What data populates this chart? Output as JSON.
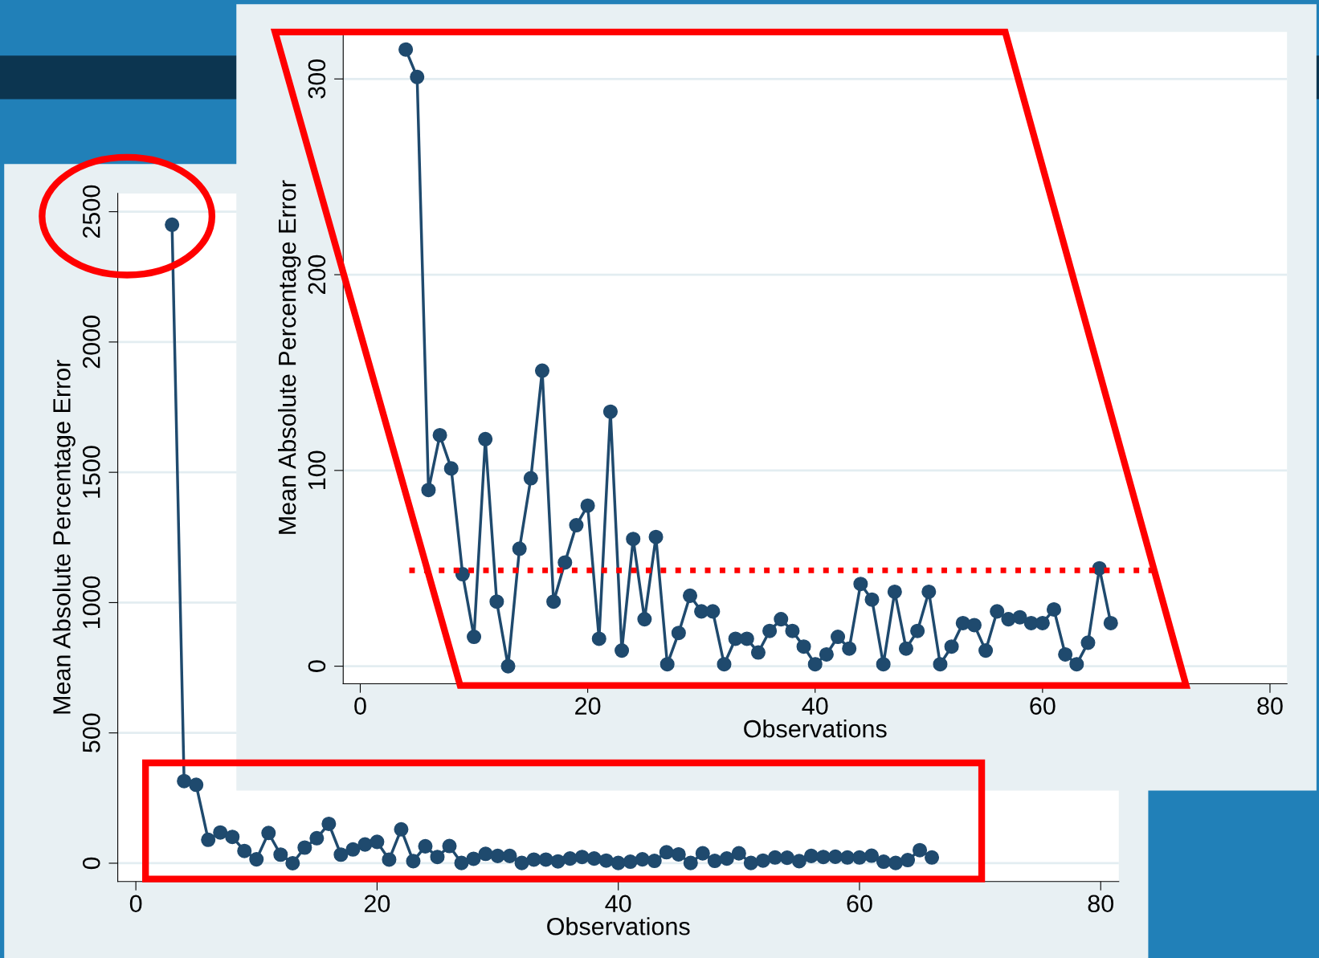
{
  "chart_data": [
    {
      "type": "line",
      "xlabel": "Observations",
      "ylabel": "Mean Absolute Percentage Error",
      "marker": "circle",
      "grid": "y",
      "x": [
        3,
        4,
        5,
        6,
        7,
        8,
        9,
        10,
        11,
        12,
        13,
        14,
        15,
        16,
        17,
        18,
        19,
        20,
        21,
        22,
        23,
        24,
        25,
        26,
        27,
        28,
        29,
        30,
        31,
        32,
        33,
        34,
        35,
        36,
        37,
        38,
        39,
        40,
        41,
        42,
        43,
        44,
        45,
        46,
        47,
        48,
        49,
        50,
        51,
        52,
        53,
        54,
        55,
        56,
        57,
        58,
        59,
        60,
        61,
        62,
        63,
        64,
        65,
        66
      ],
      "series": [
        {
          "color": "#1f4a6e",
          "values": [
            2450,
            315,
            301,
            90,
            118,
            101,
            47,
            15,
            116,
            33,
            0,
            60,
            96,
            151,
            33,
            53,
            72,
            82,
            14,
            130,
            8,
            65,
            24,
            66,
            1,
            17,
            36,
            28,
            28,
            1,
            14,
            14,
            7,
            18,
            24,
            18,
            10,
            1,
            6,
            15,
            9,
            42,
            34,
            1,
            38,
            9,
            18,
            38,
            1,
            10,
            22,
            21,
            8,
            28,
            24,
            25,
            22,
            22,
            29,
            6,
            1,
            12,
            50,
            22
          ]
        }
      ],
      "xlim": [
        -1.5,
        81.5
      ],
      "ylim": [
        -70,
        2570
      ],
      "xticks": [
        0,
        20,
        40,
        60,
        80
      ],
      "yticks": [
        0,
        500,
        1000,
        1500,
        2000,
        2500
      ]
    },
    {
      "type": "line",
      "xlabel": "Observations",
      "ylabel": "Mean Absolute Percentage Error",
      "marker": "circle",
      "grid": "y",
      "x": [
        4,
        5,
        6,
        7,
        8,
        9,
        10,
        11,
        12,
        13,
        14,
        15,
        16,
        17,
        18,
        19,
        20,
        21,
        22,
        23,
        24,
        25,
        26,
        27,
        28,
        29,
        30,
        31,
        32,
        33,
        34,
        35,
        36,
        37,
        38,
        39,
        40,
        41,
        42,
        43,
        44,
        45,
        46,
        47,
        48,
        49,
        50,
        51,
        52,
        53,
        54,
        55,
        56,
        57,
        58,
        59,
        60,
        61,
        62,
        63,
        64,
        65,
        66
      ],
      "series": [
        {
          "color": "#1f4a6e",
          "values": [
            315,
            301,
            90,
            118,
            101,
            47,
            15,
            116,
            33,
            0,
            60,
            96,
            151,
            33,
            53,
            72,
            82,
            14,
            130,
            8,
            65,
            24,
            66,
            1,
            17,
            36,
            28,
            28,
            1,
            14,
            14,
            7,
            18,
            24,
            18,
            10,
            1,
            6,
            15,
            9,
            42,
            34,
            1,
            38,
            9,
            18,
            38,
            1,
            10,
            22,
            21,
            8,
            28,
            24,
            25,
            22,
            22,
            29,
            6,
            1,
            12,
            50,
            22
          ]
        }
      ],
      "ref_lines": [
        {
          "axis": "y",
          "value": 49,
          "color": "#ff0000",
          "line_style": "dotted"
        }
      ],
      "xlim": [
        -1.5,
        81.5
      ],
      "ylim": [
        -9,
        324
      ],
      "xticks": [
        0,
        20,
        40,
        60,
        80
      ],
      "yticks": [
        0,
        100,
        200,
        300
      ]
    }
  ]
}
